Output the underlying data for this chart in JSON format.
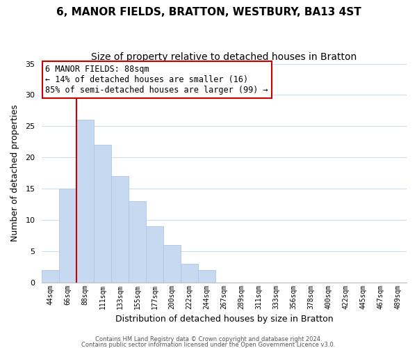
{
  "title": "6, MANOR FIELDS, BRATTON, WESTBURY, BA13 4ST",
  "subtitle": "Size of property relative to detached houses in Bratton",
  "xlabel": "Distribution of detached houses by size in Bratton",
  "ylabel": "Number of detached properties",
  "bar_labels": [
    "44sqm",
    "66sqm",
    "88sqm",
    "111sqm",
    "133sqm",
    "155sqm",
    "177sqm",
    "200sqm",
    "222sqm",
    "244sqm",
    "267sqm",
    "289sqm",
    "311sqm",
    "333sqm",
    "356sqm",
    "378sqm",
    "400sqm",
    "422sqm",
    "445sqm",
    "467sqm",
    "489sqm"
  ],
  "bar_values": [
    2,
    15,
    26,
    22,
    17,
    13,
    9,
    6,
    3,
    2,
    0,
    0,
    0,
    0,
    0,
    0,
    0,
    0,
    0,
    0,
    0
  ],
  "bar_color": "#c6d9f0",
  "bar_edge_color": "#aec6e8",
  "vline_x_index": 2,
  "vline_color": "#cc0000",
  "ylim": [
    0,
    35
  ],
  "yticks": [
    0,
    5,
    10,
    15,
    20,
    25,
    30,
    35
  ],
  "annotation_title": "6 MANOR FIELDS: 88sqm",
  "annotation_line1": "← 14% of detached houses are smaller (16)",
  "annotation_line2": "85% of semi-detached houses are larger (99) →",
  "annotation_box_color": "#ffffff",
  "annotation_box_edgecolor": "#cc0000",
  "footer_line1": "Contains HM Land Registry data © Crown copyright and database right 2024.",
  "footer_line2": "Contains public sector information licensed under the Open Government Licence v3.0.",
  "background_color": "#ffffff",
  "grid_color": "#ccddf0",
  "title_fontsize": 11,
  "subtitle_fontsize": 10
}
